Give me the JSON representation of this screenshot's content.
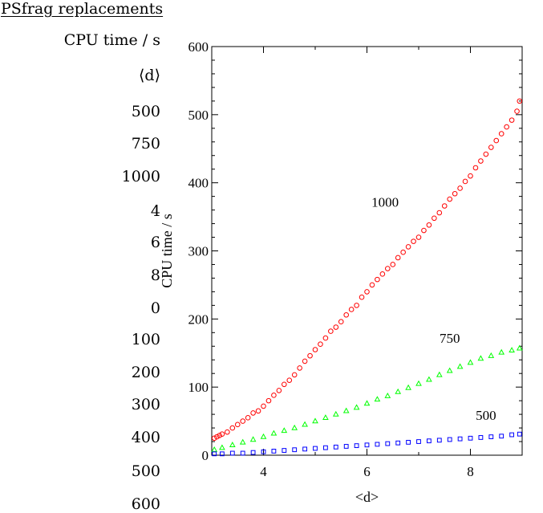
{
  "psfrag": {
    "heading": "PSfrag replacements",
    "items": [
      "CPU time / s",
      "⟨d⟩",
      "500",
      "750",
      "1000",
      "4",
      "6",
      "8",
      "0",
      "100",
      "200",
      "300",
      "400",
      "500",
      "600"
    ]
  },
  "colors": {
    "n1000": "#ff0000",
    "n750": "#00ff00",
    "n500": "#0000ff",
    "axis": "#000000"
  },
  "chart_data": {
    "type": "scatter",
    "title": "",
    "xlabel": "<d>",
    "ylabel": "CPU time / s",
    "xlim": [
      3,
      9
    ],
    "ylim": [
      0,
      600
    ],
    "xticks": [
      4,
      6,
      8
    ],
    "yticks": [
      0,
      100,
      200,
      300,
      400,
      500,
      600
    ],
    "grid": false,
    "legend": "none",
    "annotations": [
      {
        "text": "1000",
        "x": 6.35,
        "y": 365
      },
      {
        "text": "750",
        "x": 7.6,
        "y": 165
      },
      {
        "text": "500",
        "x": 8.3,
        "y": 52
      }
    ],
    "series": [
      {
        "marker": "circle",
        "color": "#ff0000",
        "points": [
          [
            3.05,
            25
          ],
          [
            3.1,
            27
          ],
          [
            3.15,
            29
          ],
          [
            3.2,
            31
          ],
          [
            3.3,
            34
          ],
          [
            3.4,
            40
          ],
          [
            3.5,
            45
          ],
          [
            3.6,
            50
          ],
          [
            3.7,
            55
          ],
          [
            3.8,
            62
          ],
          [
            3.9,
            65
          ],
          [
            4.0,
            72
          ],
          [
            4.1,
            80
          ],
          [
            4.2,
            88
          ],
          [
            4.3,
            95
          ],
          [
            4.4,
            104
          ],
          [
            4.5,
            110
          ],
          [
            4.6,
            118
          ],
          [
            4.7,
            128
          ],
          [
            4.8,
            138
          ],
          [
            4.9,
            146
          ],
          [
            5.0,
            155
          ],
          [
            5.1,
            163
          ],
          [
            5.2,
            172
          ],
          [
            5.3,
            182
          ],
          [
            5.4,
            188
          ],
          [
            5.5,
            196
          ],
          [
            5.6,
            206
          ],
          [
            5.7,
            214
          ],
          [
            5.8,
            220
          ],
          [
            5.9,
            232
          ],
          [
            6.0,
            240
          ],
          [
            6.1,
            250
          ],
          [
            6.2,
            258
          ],
          [
            6.3,
            266
          ],
          [
            6.4,
            274
          ],
          [
            6.5,
            280
          ],
          [
            6.6,
            290
          ],
          [
            6.7,
            298
          ],
          [
            6.8,
            306
          ],
          [
            6.9,
            314
          ],
          [
            7.0,
            320
          ],
          [
            7.1,
            330
          ],
          [
            7.2,
            338
          ],
          [
            7.3,
            348
          ],
          [
            7.4,
            356
          ],
          [
            7.5,
            366
          ],
          [
            7.6,
            376
          ],
          [
            7.7,
            384
          ],
          [
            7.8,
            392
          ],
          [
            7.9,
            402
          ],
          [
            8.0,
            410
          ],
          [
            8.1,
            422
          ],
          [
            8.2,
            432
          ],
          [
            8.3,
            442
          ],
          [
            8.4,
            452
          ],
          [
            8.5,
            462
          ],
          [
            8.6,
            472
          ],
          [
            8.7,
            482
          ],
          [
            8.8,
            492
          ],
          [
            8.9,
            505
          ],
          [
            8.95,
            520
          ]
        ]
      },
      {
        "marker": "triangle",
        "color": "#00ff00",
        "points": [
          [
            3.05,
            8
          ],
          [
            3.2,
            11
          ],
          [
            3.4,
            15
          ],
          [
            3.6,
            19
          ],
          [
            3.8,
            23
          ],
          [
            4.0,
            27
          ],
          [
            4.2,
            32
          ],
          [
            4.4,
            36
          ],
          [
            4.6,
            40
          ],
          [
            4.8,
            45
          ],
          [
            5.0,
            50
          ],
          [
            5.2,
            55
          ],
          [
            5.4,
            60
          ],
          [
            5.6,
            65
          ],
          [
            5.8,
            70
          ],
          [
            6.0,
            76
          ],
          [
            6.2,
            82
          ],
          [
            6.4,
            87
          ],
          [
            6.6,
            93
          ],
          [
            6.8,
            99
          ],
          [
            7.0,
            105
          ],
          [
            7.2,
            111
          ],
          [
            7.4,
            118
          ],
          [
            7.6,
            124
          ],
          [
            7.8,
            130
          ],
          [
            8.0,
            136
          ],
          [
            8.2,
            142
          ],
          [
            8.4,
            146
          ],
          [
            8.6,
            151
          ],
          [
            8.8,
            154
          ],
          [
            8.95,
            157
          ]
        ]
      },
      {
        "marker": "square",
        "color": "#0000ff",
        "points": [
          [
            3.05,
            2
          ],
          [
            3.2,
            2
          ],
          [
            3.4,
            3
          ],
          [
            3.6,
            3
          ],
          [
            3.8,
            4
          ],
          [
            4.0,
            5
          ],
          [
            4.2,
            6
          ],
          [
            4.4,
            7
          ],
          [
            4.6,
            8
          ],
          [
            4.8,
            9
          ],
          [
            5.0,
            10
          ],
          [
            5.2,
            11
          ],
          [
            5.4,
            12
          ],
          [
            5.6,
            13
          ],
          [
            5.8,
            14
          ],
          [
            6.0,
            15
          ],
          [
            6.2,
            16
          ],
          [
            6.4,
            17
          ],
          [
            6.6,
            18
          ],
          [
            6.8,
            19
          ],
          [
            7.0,
            20
          ],
          [
            7.2,
            21
          ],
          [
            7.4,
            22
          ],
          [
            7.6,
            23
          ],
          [
            7.8,
            24
          ],
          [
            8.0,
            25
          ],
          [
            8.2,
            26
          ],
          [
            8.4,
            27
          ],
          [
            8.6,
            28
          ],
          [
            8.8,
            30
          ],
          [
            8.95,
            31
          ]
        ]
      }
    ]
  }
}
